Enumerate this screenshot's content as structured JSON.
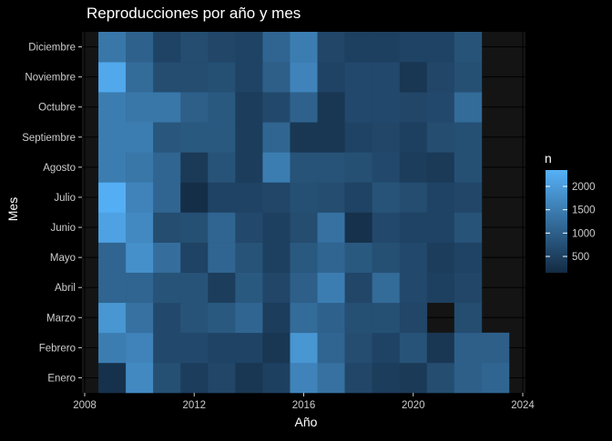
{
  "chart_data": {
    "type": "heatmap",
    "title": "Reproducciones por año y mes",
    "xlabel": "Año",
    "ylabel": "Mes",
    "x_ticks": [
      2008,
      2012,
      2016,
      2020,
      2024
    ],
    "xlim": [
      2007.9,
      2024.1
    ],
    "years": [
      2009,
      2010,
      2011,
      2012,
      2013,
      2014,
      2015,
      2016,
      2017,
      2018,
      2019,
      2020,
      2021,
      2022,
      2023
    ],
    "months": [
      "Enero",
      "Febrero",
      "Marzo",
      "Abril",
      "Mayo",
      "Junio",
      "Julio",
      "Agosto",
      "Septiembre",
      "Octubre",
      "Noviembre",
      "Diciembre"
    ],
    "values": [
      [
        250,
        1700,
        750,
        450,
        600,
        350,
        500,
        1600,
        1300,
        600,
        450,
        400,
        700,
        1000,
        1100
      ],
      [
        1500,
        1600,
        650,
        650,
        550,
        550,
        350,
        1900,
        1100,
        700,
        550,
        800,
        350,
        1000,
        1000
      ],
      [
        1900,
        1300,
        650,
        800,
        900,
        1100,
        450,
        1200,
        1050,
        750,
        750,
        600,
        null,
        700,
        null
      ],
      [
        1100,
        1100,
        800,
        800,
        450,
        900,
        600,
        1000,
        1500,
        600,
        1200,
        650,
        500,
        600,
        null
      ],
      [
        1100,
        1800,
        1250,
        550,
        1100,
        800,
        500,
        900,
        1100,
        900,
        750,
        650,
        450,
        550,
        null
      ],
      [
        2100,
        1700,
        700,
        750,
        1100,
        650,
        500,
        700,
        1300,
        250,
        650,
        550,
        550,
        800,
        null
      ],
      [
        2300,
        1600,
        1100,
        200,
        550,
        550,
        600,
        750,
        700,
        550,
        800,
        700,
        550,
        600,
        null
      ],
      [
        1500,
        1400,
        1100,
        400,
        800,
        450,
        1500,
        800,
        800,
        750,
        650,
        450,
        400,
        750,
        null
      ],
      [
        1500,
        1500,
        850,
        900,
        900,
        450,
        1100,
        350,
        350,
        550,
        600,
        500,
        700,
        750,
        null
      ],
      [
        1500,
        1400,
        1400,
        1000,
        900,
        450,
        650,
        1050,
        350,
        650,
        650,
        600,
        650,
        1200,
        null
      ],
      [
        2200,
        1200,
        700,
        700,
        750,
        550,
        1000,
        1600,
        550,
        650,
        650,
        350,
        600,
        750,
        null
      ],
      [
        1400,
        1050,
        550,
        700,
        600,
        550,
        1100,
        1500,
        600,
        500,
        500,
        550,
        550,
        800,
        null
      ]
    ],
    "legend": {
      "title": "n",
      "breaks": [
        500,
        1000,
        1500,
        2000
      ],
      "min": 150,
      "max": 2350,
      "low_color": "#132B43",
      "high_color": "#56B1F7"
    },
    "colors": {
      "background": "#000000",
      "panel": "#141414",
      "gridline": "#000000",
      "text": "#FFFFFF",
      "axis_text": "#CCCCCC"
    }
  }
}
